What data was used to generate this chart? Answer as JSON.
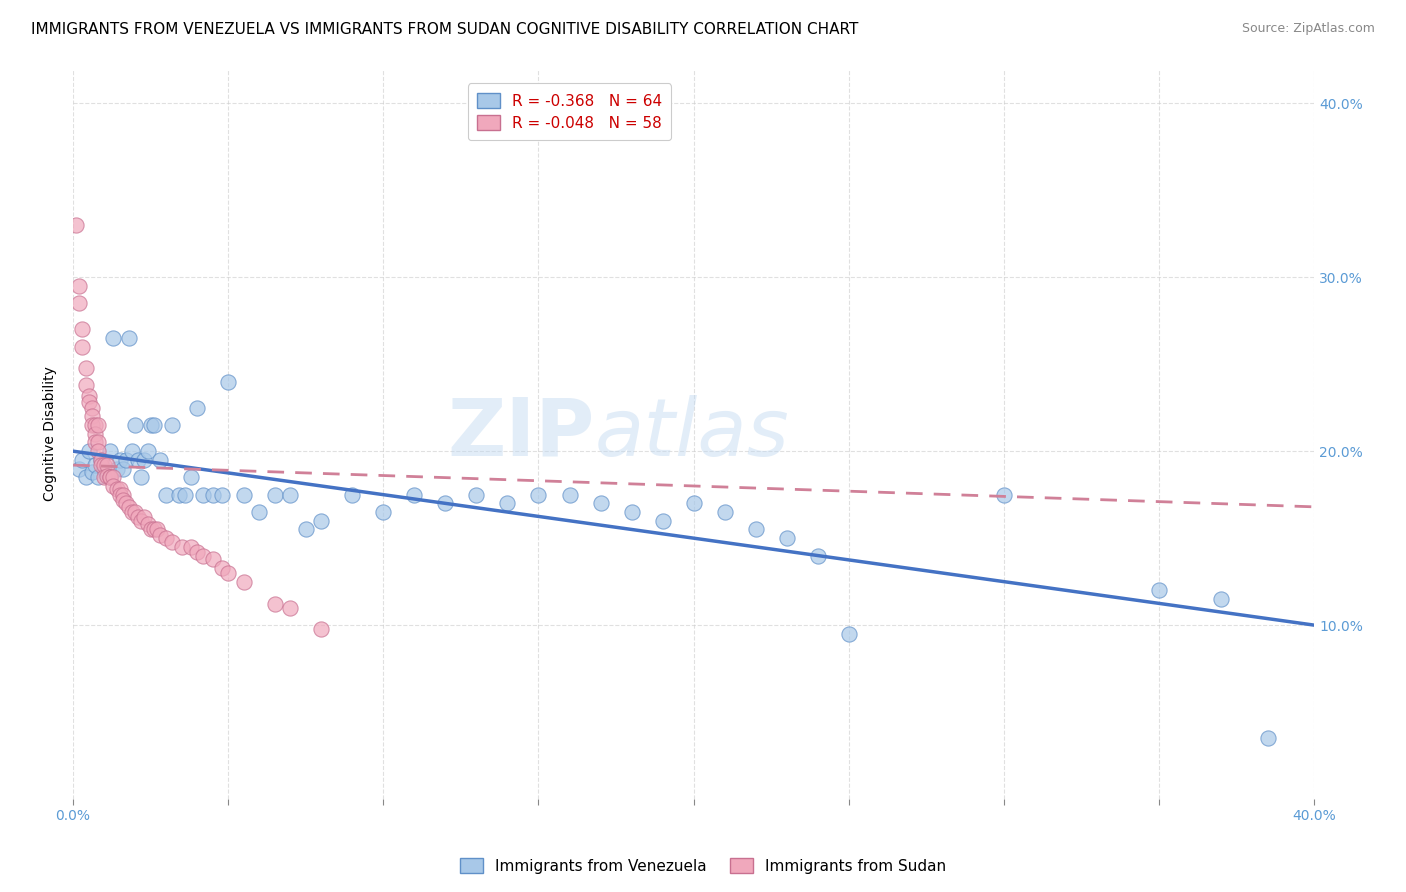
{
  "title": "IMMIGRANTS FROM VENEZUELA VS IMMIGRANTS FROM SUDAN COGNITIVE DISABILITY CORRELATION CHART",
  "source": "Source: ZipAtlas.com",
  "ylabel": "Cognitive Disability",
  "watermark": "ZIPatlas",
  "xlim": [
    0.0,
    0.4
  ],
  "ylim": [
    0.0,
    0.42
  ],
  "xtick_positions": [
    0.0,
    0.05,
    0.1,
    0.15,
    0.2,
    0.25,
    0.3,
    0.35,
    0.4
  ],
  "xtick_labels_show": [
    "0.0%",
    "",
    "",
    "",
    "",
    "",
    "",
    "",
    "40.0%"
  ],
  "ytick_positions": [
    0.1,
    0.2,
    0.3,
    0.4
  ],
  "ytick_labels": [
    "10.0%",
    "20.0%",
    "30.0%",
    "40.0%"
  ],
  "legend_line1": "R = -0.368   N = 64",
  "legend_line2": "R = -0.048   N = 58",
  "legend_color1": "#a8c8e8",
  "legend_color2": "#f0a8bc",
  "bottom_legend_venezuela": "Immigrants from Venezuela",
  "bottom_legend_sudan": "Immigrants from Sudan",
  "series_venezuela": {
    "color": "#a8c8e8",
    "edgecolor": "#6090c8",
    "x": [
      0.002,
      0.003,
      0.004,
      0.005,
      0.006,
      0.007,
      0.008,
      0.009,
      0.01,
      0.011,
      0.012,
      0.012,
      0.013,
      0.014,
      0.015,
      0.016,
      0.017,
      0.018,
      0.019,
      0.02,
      0.021,
      0.022,
      0.023,
      0.024,
      0.025,
      0.026,
      0.028,
      0.03,
      0.032,
      0.034,
      0.036,
      0.038,
      0.04,
      0.042,
      0.045,
      0.048,
      0.05,
      0.055,
      0.06,
      0.065,
      0.07,
      0.075,
      0.08,
      0.09,
      0.1,
      0.11,
      0.12,
      0.13,
      0.14,
      0.15,
      0.16,
      0.17,
      0.18,
      0.19,
      0.2,
      0.21,
      0.22,
      0.23,
      0.24,
      0.25,
      0.3,
      0.35,
      0.37,
      0.385
    ],
    "y": [
      0.19,
      0.195,
      0.185,
      0.2,
      0.188,
      0.192,
      0.185,
      0.195,
      0.19,
      0.188,
      0.185,
      0.2,
      0.265,
      0.19,
      0.195,
      0.19,
      0.195,
      0.265,
      0.2,
      0.215,
      0.195,
      0.185,
      0.195,
      0.2,
      0.215,
      0.215,
      0.195,
      0.175,
      0.215,
      0.175,
      0.175,
      0.185,
      0.225,
      0.175,
      0.175,
      0.175,
      0.24,
      0.175,
      0.165,
      0.175,
      0.175,
      0.155,
      0.16,
      0.175,
      0.165,
      0.175,
      0.17,
      0.175,
      0.17,
      0.175,
      0.175,
      0.17,
      0.165,
      0.16,
      0.17,
      0.165,
      0.155,
      0.15,
      0.14,
      0.095,
      0.175,
      0.12,
      0.115,
      0.035
    ]
  },
  "series_sudan": {
    "color": "#f0a8bc",
    "edgecolor": "#c87090",
    "x": [
      0.001,
      0.002,
      0.002,
      0.003,
      0.003,
      0.004,
      0.004,
      0.005,
      0.005,
      0.006,
      0.006,
      0.006,
      0.007,
      0.007,
      0.007,
      0.008,
      0.008,
      0.008,
      0.009,
      0.009,
      0.01,
      0.01,
      0.011,
      0.011,
      0.012,
      0.012,
      0.013,
      0.013,
      0.014,
      0.015,
      0.015,
      0.016,
      0.016,
      0.017,
      0.018,
      0.019,
      0.02,
      0.021,
      0.022,
      0.023,
      0.024,
      0.025,
      0.026,
      0.027,
      0.028,
      0.03,
      0.032,
      0.035,
      0.038,
      0.04,
      0.042,
      0.045,
      0.048,
      0.05,
      0.055,
      0.065,
      0.07,
      0.08
    ],
    "y": [
      0.33,
      0.295,
      0.285,
      0.27,
      0.26,
      0.248,
      0.238,
      0.232,
      0.228,
      0.225,
      0.22,
      0.215,
      0.215,
      0.21,
      0.205,
      0.215,
      0.205,
      0.2,
      0.195,
      0.192,
      0.192,
      0.185,
      0.192,
      0.186,
      0.185,
      0.185,
      0.185,
      0.18,
      0.178,
      0.178,
      0.175,
      0.175,
      0.172,
      0.17,
      0.168,
      0.165,
      0.165,
      0.162,
      0.16,
      0.162,
      0.158,
      0.155,
      0.155,
      0.155,
      0.152,
      0.15,
      0.148,
      0.145,
      0.145,
      0.142,
      0.14,
      0.138,
      0.133,
      0.13,
      0.125,
      0.112,
      0.11,
      0.098
    ]
  },
  "trendline_venezuela": {
    "color": "#4472c4",
    "x_start": 0.0,
    "x_end": 0.4,
    "y_start": 0.2,
    "y_end": 0.1
  },
  "trendline_sudan": {
    "color": "#d08098",
    "x_start": 0.0,
    "x_end": 0.4,
    "y_start": 0.192,
    "y_end": 0.168
  },
  "background_color": "#ffffff",
  "grid_color": "#cccccc",
  "axis_label_color": "#5b9bd5",
  "title_fontsize": 11,
  "ylabel_fontsize": 10,
  "tick_fontsize": 10,
  "legend_fontsize": 11
}
